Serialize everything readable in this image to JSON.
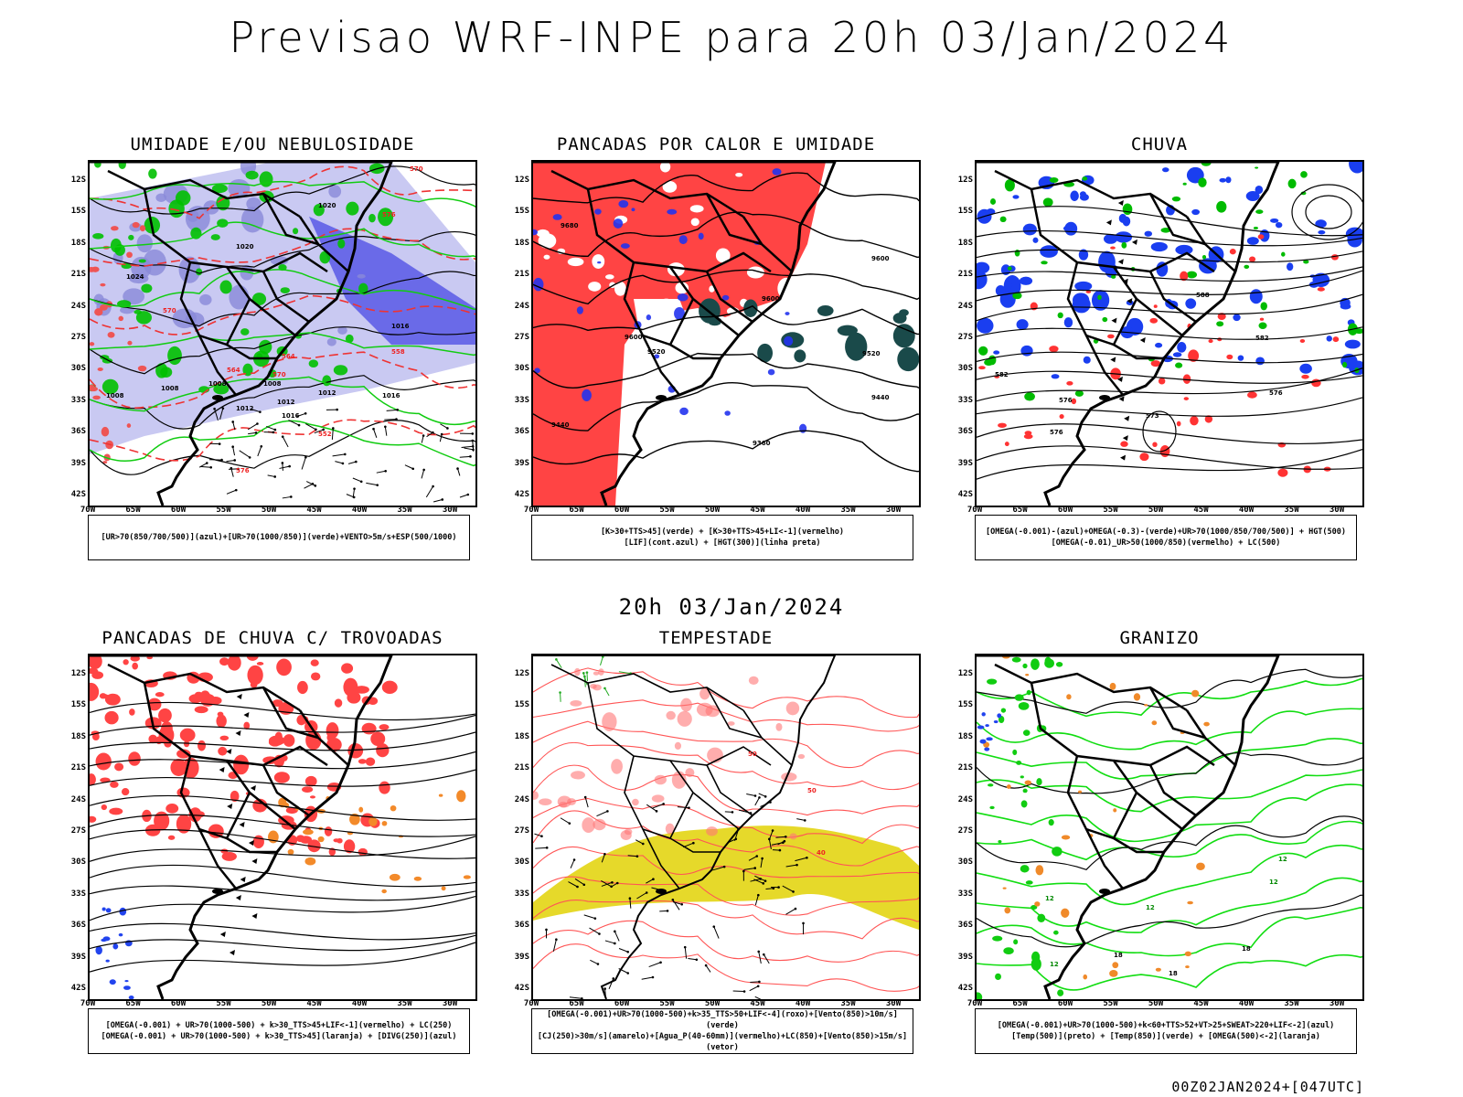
{
  "header": {
    "title": "Previsao WRF-INPE  para 20h 03/Jan/2024"
  },
  "mid_date": "20h 03/Jan/2024",
  "footer": "00Z02JAN2024+[047UTC]",
  "axes": {
    "lat_labels": [
      "12S",
      "15S",
      "18S",
      "21S",
      "24S",
      "27S",
      "30S",
      "33S",
      "36S",
      "39S",
      "42S"
    ],
    "lon_labels": [
      "70W",
      "65W",
      "60W",
      "55W",
      "50W",
      "45W",
      "40W",
      "35W",
      "30W"
    ]
  },
  "panels": [
    {
      "id": "umidade",
      "title": "UMIDADE E/OU NEBULOSIDADE",
      "legend": [
        "[UR>70(850/700/500)](azul)+[UR>70(1000/850)](verde)+VENTO>5m/s+ESP(500/1000)"
      ],
      "contours": [
        "1008",
        "1008",
        "1008",
        "1008",
        "1012",
        "1012",
        "1012",
        "1016",
        "1016",
        "1016",
        "1020",
        "1020",
        "1024",
        "570",
        "570",
        "564",
        "564",
        "558",
        "552",
        "576",
        "576",
        "570"
      ]
    },
    {
      "id": "calor",
      "title": "PANCADAS POR CALOR E UMIDADE",
      "legend": [
        "[K>30+TTS>45](verde)  +  [K>30+TTS>45+LI<-1](vermelho)",
        "[LIF](cont.azul)  +  [HGT(300)](linha preta)"
      ],
      "contours": [
        "9680",
        "9600",
        "9600",
        "9600",
        "9520",
        "9520",
        "9440",
        "9440",
        "9360"
      ]
    },
    {
      "id": "chuva",
      "title": "CHUVA",
      "legend": [
        "[OMEGA(-0.001)-(azul)+OMEGA(-0.3)-(verde)+UR>70(1000/850/700/500)]  +  HGT(500)",
        "[OMEGA(-0.01)_UR>50(1000/850)(vermelho)  +  LC(500)"
      ],
      "contours": [
        "588",
        "582",
        "576",
        "576",
        "573",
        "576",
        "582"
      ]
    },
    {
      "id": "trovoadas",
      "title": "PANCADAS DE CHUVA C/ TROVOADAS",
      "legend": [
        "[OMEGA(-0.001)  +  UR>70(1000-500)  +  k>30_TTS>45+LIF<-1](vermelho)  +  LC(250)",
        "[OMEGA(-0.001)  +  UR>70(1000-500)  +  k>30_TTS>45](laranja)  +  [DIVG(250)](azul)"
      ],
      "contours": []
    },
    {
      "id": "tempestade",
      "title": "TEMPESTADE",
      "legend": [
        "[OMEGA(-0.001)+UR>70(1000-500)+k>35_TTS>50+LIF<-4](roxo)+[Vento(850)>10m/s](verde)",
        "[CJ(250)>30m/s](amarelo)+[Agua_P(40-60mm)](vermelho)+LC(850)+[Vento(850)>15m/s](vetor)"
      ],
      "contours": [
        "50",
        "50",
        "40"
      ]
    },
    {
      "id": "granizo",
      "title": "GRANIZO",
      "legend": [
        "[OMEGA(-0.001)+UR>70(1000-500)+k<60+TTS>52+VT>25+SWEAT>220+LIF<-2](azul)",
        "[Temp(500)](preto)  +  [Temp(850)](verde)  +  [OMEGA(500)<-2](laranja)"
      ],
      "contours": [
        "12",
        "12",
        "12",
        "12",
        "18",
        "18",
        "18",
        "12"
      ]
    }
  ]
}
